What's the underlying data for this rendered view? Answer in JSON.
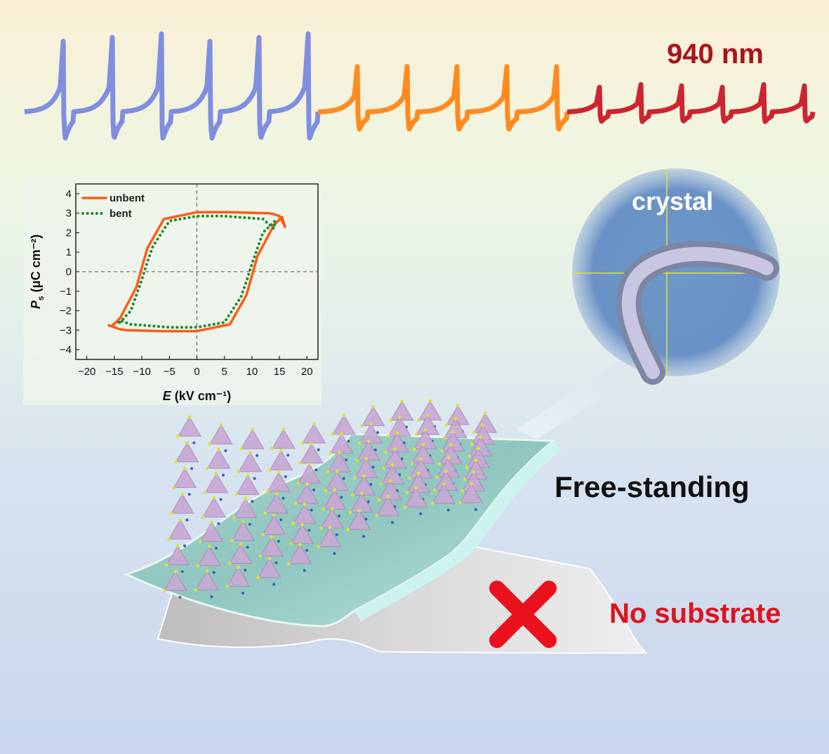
{
  "labels": {
    "wavelength": "940 nm",
    "crystal": "crystal",
    "free_standing": "Free-standing",
    "no_substrate": "No substrate"
  },
  "colors": {
    "wave_segment_1": "#7f8ee0",
    "wave_segment_2": "#ff8a1f",
    "wave_segment_3": "#cc2530",
    "unbent": "#ff5a14",
    "bent": "#1e8a2a",
    "cross": "#e8111c"
  },
  "waveform": {
    "segments": [
      {
        "name": "segment-1",
        "pulses": 6,
        "amplitude": 1.0
      },
      {
        "name": "segment-2",
        "pulses": 5,
        "amplitude": 0.65
      },
      {
        "name": "segment-3",
        "pulses": 6,
        "amplitude": 0.35
      }
    ]
  },
  "chart_data": {
    "type": "line",
    "title": "",
    "xlabel_italic": "E",
    "xlabel_rest": " (kV cm⁻¹)",
    "ylabel_italic": "P",
    "ylabel_sub": "s",
    "ylabel_rest": " (μC cm⁻²)",
    "xlim": [
      -22,
      22
    ],
    "ylim": [
      -4.5,
      4.5
    ],
    "xticks": [
      -20,
      -15,
      -10,
      -5,
      0,
      5,
      10,
      15,
      20
    ],
    "yticks": [
      -4,
      -3,
      -2,
      -1,
      0,
      1,
      2,
      3,
      4
    ],
    "xtick_labels": [
      "−20",
      "−15",
      "−10",
      "−5",
      "0",
      "5",
      "10",
      "15",
      "20"
    ],
    "ytick_labels": [
      "−4",
      "−3",
      "−2",
      "−1",
      "0",
      "1",
      "2",
      "3",
      "4"
    ],
    "legend_position": "top-left",
    "series": [
      {
        "name": "unbent",
        "style": "solid",
        "x": [
          -15.5,
          -14,
          -11,
          -10,
          -9,
          -6,
          0,
          6,
          13,
          14,
          15,
          16,
          15.5,
          14,
          11,
          10,
          9,
          6,
          0,
          -6,
          -13,
          -14,
          -15,
          -16,
          -15.5
        ],
        "y": [
          -2.8,
          -2.4,
          -0.8,
          0.2,
          1.2,
          2.7,
          3.05,
          3.05,
          3.0,
          2.95,
          2.85,
          2.3,
          2.8,
          2.4,
          0.8,
          -0.2,
          -1.2,
          -2.7,
          -3.05,
          -3.05,
          -3.0,
          -2.95,
          -2.85,
          -2.75,
          -2.8
        ]
      },
      {
        "name": "bent",
        "style": "dotted",
        "x": [
          -14,
          -12,
          -10,
          -9,
          -8,
          -5,
          0,
          5,
          12,
          14,
          14.2,
          12,
          10,
          9,
          8,
          5,
          0,
          -5,
          -12,
          -14,
          -14.2,
          -14
        ],
        "y": [
          -2.6,
          -2.0,
          -0.4,
          0.5,
          1.3,
          2.6,
          2.85,
          2.85,
          2.7,
          2.2,
          2.6,
          2.0,
          0.4,
          -0.5,
          -1.3,
          -2.6,
          -2.85,
          -2.85,
          -2.7,
          -2.5,
          -2.6,
          -2.6
        ]
      }
    ]
  }
}
